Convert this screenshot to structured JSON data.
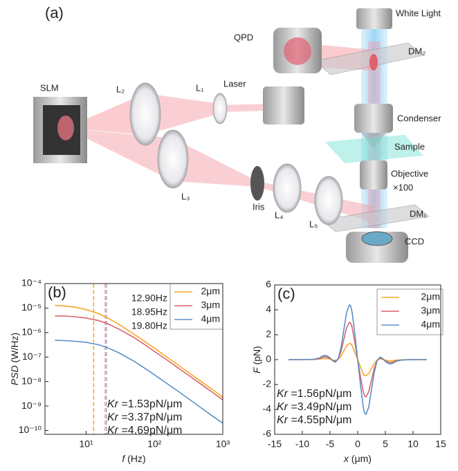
{
  "diagram": {
    "panel_label": "(a)",
    "labels": [
      "White Light",
      "QPD",
      "DM₂",
      "SLM",
      "L₂",
      "L₁",
      "Laser",
      "Condenser",
      "Sample",
      "Objective",
      "×100",
      "L₃",
      "Iris",
      "L₄",
      "L₅",
      "DM₁",
      "CCD"
    ]
  },
  "chart_data": [
    {
      "type": "line",
      "panel_label": "(b)",
      "x_label_symbol": "f",
      "x_label_unit": "(Hz)",
      "y_label_symbol": "PSD",
      "y_label_unit": "(W/Hz)",
      "x_log": true,
      "y_log": true,
      "legend": "upper right",
      "xlim": [
        2.5,
        1000
      ],
      "ylim": [
        7e-11,
        0.0001
      ],
      "xticks": [
        {
          "value": 10,
          "label": "10¹"
        },
        {
          "value": 100,
          "label": "10²"
        },
        {
          "value": 1000,
          "label": "10³"
        }
      ],
      "yticks": [
        {
          "value": 0.0001,
          "label": "10⁻⁴"
        },
        {
          "value": 1e-05,
          "label": "10⁻⁵"
        },
        {
          "value": 1e-06,
          "label": "10⁻⁶"
        },
        {
          "value": 1e-07,
          "label": "10⁻⁷"
        },
        {
          "value": 1e-08,
          "label": "10⁻⁸"
        },
        {
          "value": 1e-09,
          "label": "10⁻⁹"
        },
        {
          "value": 1e-10,
          "label": "10⁻¹⁰"
        }
      ],
      "x": [
        3.5,
        5,
        7,
        10,
        15,
        20,
        30,
        50,
        70,
        100,
        150,
        200,
        300,
        500,
        700,
        1000
      ],
      "series": [
        {
          "name": "2μm",
          "color": "#f5a623",
          "values": [
            1.3e-05,
            1.22e-05,
            1.08e-05,
            8.7e-06,
            6e-06,
            4.1e-06,
            2.2e-06,
            8.7e-07,
            4.6e-07,
            2.3e-07,
            1.03e-07,
            5.8e-08,
            2.6e-08,
            9.3e-09,
            4.8e-09,
            2.3e-09
          ]
        },
        {
          "name": "3μm",
          "color": "#d9606a",
          "values": [
            4.8e-06,
            4.7e-06,
            4.4e-06,
            3.9e-06,
            3.1e-06,
            2.4e-06,
            1.4e-06,
            6.3e-07,
            3.4e-07,
            1.7e-07,
            7.9e-08,
            4.4e-08,
            2e-08,
            7.2e-09,
            3.7e-09,
            1.8e-09
          ]
        },
        {
          "name": "4μm",
          "color": "#5b8fc9",
          "values": [
            4.8e-07,
            4.7e-07,
            4.4e-07,
            4e-07,
            3.2e-07,
            2.5e-07,
            1.5e-07,
            6.8e-08,
            3.7e-08,
            1.9e-08,
            8.6e-09,
            4.9e-09,
            2.2e-09,
            7.8e-10,
            4e-10,
            2e-10
          ]
        }
      ],
      "corner_frequencies": [
        {
          "value": 12.9,
          "label": "12.90Hz",
          "color": "#f5a623",
          "line_color": "#f5a623"
        },
        {
          "value": 18.95,
          "label": "18.95Hz",
          "color": "#d9606a",
          "line_color": "#e8a0a8"
        },
        {
          "value": 19.8,
          "label": "19.80Hz",
          "color": "#5b8fc9",
          "line_color": "#b0a0c8"
        }
      ],
      "stiffness": [
        {
          "symbol": "Kr",
          "text": "=1.53pN/μm",
          "color": "#f5a623"
        },
        {
          "symbol": "Kr",
          "text": "=3.37pN/μm",
          "color": "#d9606a"
        },
        {
          "symbol": "Kr",
          "text": "=4.69pN/μm",
          "color": "#5b8fc9"
        }
      ]
    },
    {
      "type": "line",
      "panel_label": "(c)",
      "x_label_symbol": "x",
      "x_label_unit": "(μm)",
      "y_label_symbol": "F",
      "y_label_unit": "(pN)",
      "x_log": false,
      "y_log": false,
      "legend": "upper right",
      "xlim": [
        -15,
        15
      ],
      "ylim": [
        -6,
        6
      ],
      "xticks": [
        -15,
        -10,
        -5,
        0,
        5,
        10,
        15
      ],
      "yticks": [
        -6,
        -4,
        -2,
        0,
        2,
        4,
        6
      ],
      "x": [
        -12.5,
        -10,
        -8,
        -7,
        -6.5,
        -6,
        -5.5,
        -5,
        -4.5,
        -4,
        -3.5,
        -3,
        -2.5,
        -2,
        -1.5,
        -1.25,
        -1,
        -0.5,
        0,
        0.5,
        1,
        1.25,
        1.5,
        2,
        2.5,
        3,
        3.5,
        4,
        4.5,
        5,
        5.5,
        6,
        6.5,
        7,
        8,
        10,
        12.5
      ],
      "series": [
        {
          "name": "2μm",
          "color": "#f5a623",
          "values": [
            0,
            0,
            0.01,
            0.04,
            0.07,
            0.1,
            0.09,
            0.04,
            -0.03,
            -0.06,
            0.03,
            0.3,
            0.71,
            1.12,
            1.3,
            1.27,
            1.12,
            0.59,
            0,
            -0.59,
            -1.12,
            -1.27,
            -1.3,
            -1.12,
            -0.71,
            -0.3,
            -0.03,
            0.06,
            0.03,
            -0.04,
            -0.09,
            -0.1,
            -0.07,
            -0.04,
            -0.01,
            0,
            0
          ]
        },
        {
          "name": "3μm",
          "color": "#d9606a",
          "values": [
            0,
            0,
            0.02,
            0.08,
            0.17,
            0.24,
            0.2,
            0.1,
            -0.07,
            -0.14,
            0.07,
            0.68,
            1.63,
            2.58,
            3.0,
            2.92,
            2.58,
            1.36,
            0,
            -1.36,
            -2.58,
            -2.92,
            -3.0,
            -2.58,
            -1.63,
            -0.68,
            -0.07,
            0.14,
            0.07,
            -0.1,
            -0.2,
            -0.24,
            -0.17,
            -0.08,
            -0.02,
            0,
            0
          ]
        },
        {
          "name": "4μm",
          "color": "#5b8fc9",
          "values": [
            0,
            0,
            0.03,
            0.12,
            0.25,
            0.35,
            0.3,
            0.15,
            -0.1,
            -0.2,
            0.1,
            1.0,
            2.4,
            3.8,
            4.4,
            4.3,
            3.8,
            2.0,
            0,
            -2.0,
            -3.8,
            -4.3,
            -4.4,
            -3.8,
            -2.4,
            -1.0,
            -0.1,
            0.2,
            0.1,
            -0.15,
            -0.3,
            -0.35,
            -0.25,
            -0.12,
            -0.03,
            0,
            0
          ]
        }
      ],
      "stiffness": [
        {
          "symbol": "Kr",
          "text": "=1.56pN/μm",
          "color": "#f5a623"
        },
        {
          "symbol": "Kr",
          "text": "=3.49pN/μm",
          "color": "#d9606a"
        },
        {
          "symbol": "Kr",
          "text": "=4.55pN/μm",
          "color": "#5b8fc9"
        }
      ]
    }
  ]
}
